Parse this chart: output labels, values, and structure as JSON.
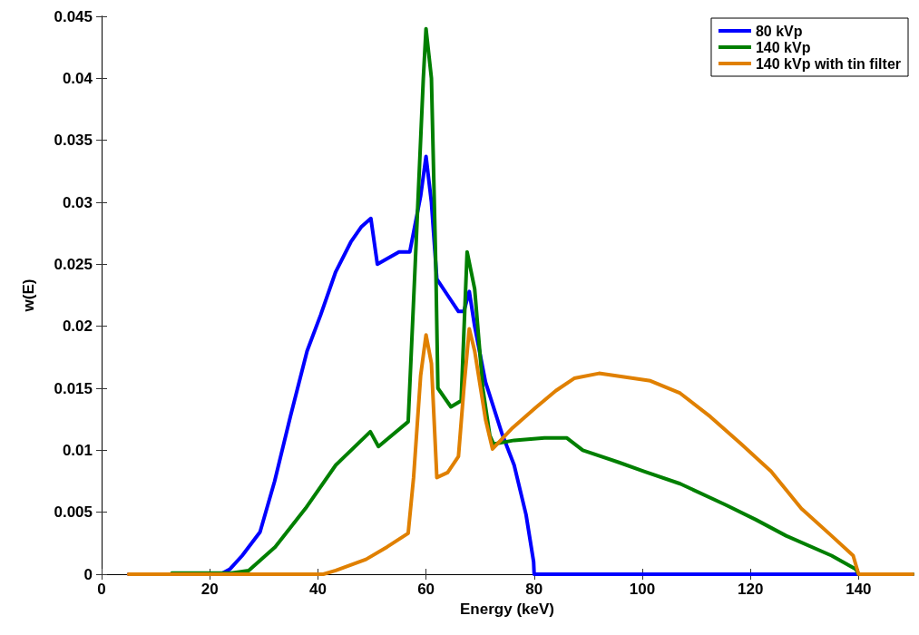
{
  "chart_data": {
    "type": "line",
    "xlabel": "Energy (keV)",
    "ylabel": "w(E)",
    "xlim": [
      0,
      150
    ],
    "xticks": [
      0,
      20,
      40,
      60,
      80,
      100,
      120,
      140
    ],
    "ylim": [
      0,
      0.045
    ],
    "yticks": [
      0,
      0.005,
      0.01,
      0.015,
      0.02,
      0.025,
      0.03,
      0.035,
      0.04,
      0.045
    ],
    "grid": false,
    "legend": "top right",
    "marker": "none",
    "line_style": "solid",
    "series": [
      {
        "name": "80 kVp",
        "color": "#0000ff",
        "x": [
          5,
          22,
          23.7,
          26,
          29.3,
          32,
          34.9,
          38,
          40.5,
          43.3,
          46.1,
          48,
          49.8,
          51,
          53,
          55,
          57,
          59,
          60,
          61,
          62,
          64,
          66,
          67,
          68,
          69,
          71,
          74,
          76.3,
          78.5,
          79.9,
          80,
          150
        ],
        "values": [
          0,
          0,
          0.0004,
          0.0015,
          0.0034,
          0.0075,
          0.0127,
          0.018,
          0.0209,
          0.0244,
          0.0268,
          0.028,
          0.0287,
          0.025,
          0.0255,
          0.026,
          0.026,
          0.0305,
          0.0337,
          0.03,
          0.0238,
          0.0225,
          0.0212,
          0.0212,
          0.0228,
          0.02,
          0.0155,
          0.0114,
          0.0088,
          0.0048,
          0.001,
          0,
          0
        ]
      },
      {
        "name": "140 kVp",
        "color": "#007f00",
        "x": [
          13,
          24,
          27.2,
          32.1,
          37.7,
          43.3,
          49.7,
          51.2,
          56.7,
          58,
          59.5,
          60,
          61,
          61.8,
          62.2,
          64.6,
          66.5,
          67.6,
          69,
          70.5,
          71.8,
          72.5,
          76.3,
          81.9,
          86,
          89,
          95.8,
          100.3,
          107,
          115.4,
          121,
          126.6,
          135,
          139.5,
          140,
          150
        ],
        "values": [
          0.0001,
          0.0001,
          0.0003,
          0.0022,
          0.0053,
          0.0088,
          0.0115,
          0.0103,
          0.0123,
          0.025,
          0.04,
          0.044,
          0.04,
          0.025,
          0.015,
          0.0135,
          0.014,
          0.026,
          0.023,
          0.015,
          0.0112,
          0.0105,
          0.0108,
          0.011,
          0.011,
          0.01,
          0.009,
          0.0083,
          0.0073,
          0.0056,
          0.0044,
          0.0031,
          0.0015,
          0.0004,
          0,
          0
        ]
      },
      {
        "name": "140 kVp with tin filter",
        "color": "#e08000",
        "x": [
          5,
          41,
          43.3,
          48.9,
          52.8,
          56.7,
          57.7,
          59,
          60,
          61,
          62,
          64,
          66,
          67,
          68,
          69,
          71,
          72.3,
          76,
          80.2,
          84,
          87.4,
          92,
          101.5,
          107,
          112.6,
          118.3,
          123.8,
          129.4,
          135,
          139,
          140,
          150
        ],
        "values": [
          0,
          0,
          0.0003,
          0.0012,
          0.0022,
          0.0033,
          0.0078,
          0.016,
          0.0193,
          0.017,
          0.0078,
          0.0082,
          0.0095,
          0.015,
          0.0198,
          0.018,
          0.0125,
          0.0101,
          0.0118,
          0.0134,
          0.0148,
          0.0158,
          0.0162,
          0.0156,
          0.0146,
          0.0127,
          0.0105,
          0.0083,
          0.0053,
          0.0031,
          0.0015,
          0,
          0
        ]
      }
    ]
  }
}
